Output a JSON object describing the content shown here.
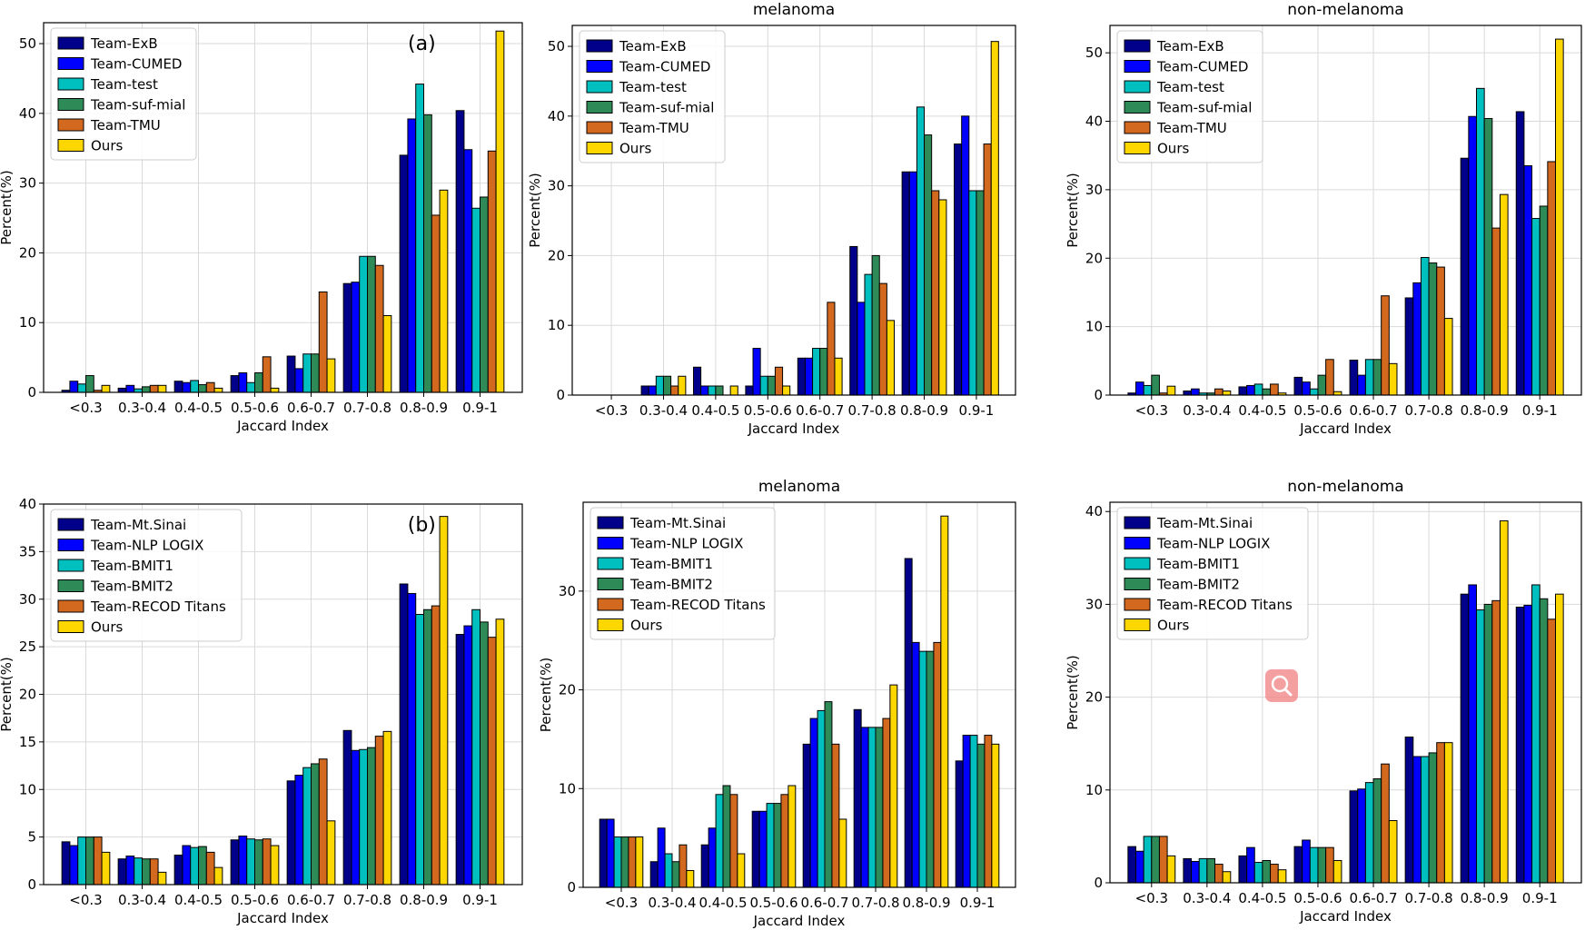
{
  "chart_data": [
    {
      "type": "bar",
      "title": "",
      "panel_label": "(a)",
      "xlabel": "Jaccard Index",
      "ylabel": "Percent(%)",
      "ylim": [
        0,
        53
      ],
      "yticks": [
        0,
        10,
        20,
        30,
        40,
        50
      ],
      "grid": true,
      "legend": "top-left",
      "categories": [
        "<0.3",
        "0.3-0.4",
        "0.4-0.5",
        "0.5-0.6",
        "0.6-0.7",
        "0.7-0.8",
        "0.8-0.9",
        "0.9-1"
      ],
      "series": [
        {
          "name": "Team-ExB",
          "color": "#00008b",
          "values": [
            0.3,
            0.6,
            1.6,
            2.4,
            5.2,
            15.6,
            34.0,
            40.4
          ]
        },
        {
          "name": "Team-CUMED",
          "color": "#0000ff",
          "values": [
            1.6,
            1.0,
            1.4,
            2.8,
            3.4,
            15.8,
            39.2,
            34.8
          ]
        },
        {
          "name": "Team-test",
          "color": "#00bfbf",
          "values": [
            1.2,
            0.5,
            1.7,
            1.4,
            5.5,
            19.5,
            44.2,
            26.4
          ]
        },
        {
          "name": "Team-suf-mial",
          "color": "#2e8b57",
          "values": [
            2.4,
            0.8,
            1.1,
            2.8,
            5.5,
            19.5,
            39.8,
            28.0
          ]
        },
        {
          "name": "Team-TMU",
          "color": "#d2691e",
          "values": [
            0.3,
            1.0,
            1.4,
            5.1,
            14.4,
            18.2,
            25.4,
            34.6
          ]
        },
        {
          "name": "Ours",
          "color": "#ffd700",
          "values": [
            1.0,
            1.0,
            0.6,
            0.6,
            4.8,
            11.0,
            29.0,
            51.8
          ]
        }
      ]
    },
    {
      "type": "bar",
      "title": "melanoma",
      "panel_label": "",
      "xlabel": "Jaccard Index",
      "ylabel": "Percent(%)",
      "ylim": [
        0,
        53
      ],
      "yticks": [
        0,
        10,
        20,
        30,
        40,
        50
      ],
      "grid": true,
      "legend": "top-left",
      "categories": [
        "<0.3",
        "0.3-0.4",
        "0.4-0.5",
        "0.5-0.6",
        "0.6-0.7",
        "0.7-0.8",
        "0.8-0.9",
        "0.9-1"
      ],
      "series": [
        {
          "name": "Team-ExB",
          "color": "#00008b",
          "values": [
            0.0,
            1.3,
            4.0,
            1.3,
            5.3,
            21.3,
            32.0,
            36.0
          ]
        },
        {
          "name": "Team-CUMED",
          "color": "#0000ff",
          "values": [
            0.0,
            1.3,
            1.3,
            6.7,
            5.3,
            13.3,
            32.0,
            40.0
          ]
        },
        {
          "name": "Team-test",
          "color": "#00bfbf",
          "values": [
            0.0,
            2.7,
            1.3,
            2.7,
            6.7,
            17.3,
            41.3,
            29.3
          ]
        },
        {
          "name": "Team-suf-mial",
          "color": "#2e8b57",
          "values": [
            0.0,
            2.7,
            1.3,
            2.7,
            6.7,
            20.0,
            37.3,
            29.3
          ]
        },
        {
          "name": "Team-TMU",
          "color": "#d2691e",
          "values": [
            0.0,
            1.3,
            0.0,
            4.0,
            13.3,
            16.0,
            29.3,
            36.0
          ]
        },
        {
          "name": "Ours",
          "color": "#ffd700",
          "values": [
            0.0,
            2.7,
            1.3,
            1.3,
            5.3,
            10.7,
            28.0,
            50.7
          ]
        }
      ]
    },
    {
      "type": "bar",
      "title": "non-melanoma",
      "panel_label": "",
      "xlabel": "Jaccard Index",
      "ylabel": "Percent(%)",
      "ylim": [
        0,
        54
      ],
      "yticks": [
        0,
        10,
        20,
        30,
        40,
        50
      ],
      "grid": true,
      "legend": "top-left",
      "categories": [
        "<0.3",
        "0.3-0.4",
        "0.4-0.5",
        "0.5-0.6",
        "0.6-0.7",
        "0.7-0.8",
        "0.8-0.9",
        "0.9-1"
      ],
      "series": [
        {
          "name": "Team-ExB",
          "color": "#00008b",
          "values": [
            0.3,
            0.6,
            1.2,
            2.6,
            5.1,
            14.2,
            34.6,
            41.4
          ]
        },
        {
          "name": "Team-CUMED",
          "color": "#0000ff",
          "values": [
            1.9,
            0.9,
            1.4,
            1.9,
            2.9,
            16.4,
            40.7,
            33.5
          ]
        },
        {
          "name": "Team-test",
          "color": "#00bfbf",
          "values": [
            1.4,
            0.3,
            1.6,
            0.9,
            5.2,
            20.1,
            44.8,
            25.8
          ]
        },
        {
          "name": "Team-suf-mial",
          "color": "#2e8b57",
          "values": [
            2.9,
            0.3,
            0.9,
            2.9,
            5.2,
            19.3,
            40.4,
            27.6
          ]
        },
        {
          "name": "Team-TMU",
          "color": "#d2691e",
          "values": [
            0.3,
            0.9,
            1.6,
            5.2,
            14.5,
            18.7,
            24.4,
            34.1
          ]
        },
        {
          "name": "Ours",
          "color": "#ffd700",
          "values": [
            1.3,
            0.6,
            0.3,
            0.5,
            4.6,
            11.2,
            29.3,
            52.0
          ]
        }
      ]
    },
    {
      "type": "bar",
      "title": "",
      "panel_label": "(b)",
      "xlabel": "Jaccard Index",
      "ylabel": "Percent(%)",
      "ylim": [
        0,
        40
      ],
      "yticks": [
        0,
        5,
        10,
        15,
        20,
        25,
        30,
        35,
        40
      ],
      "grid": true,
      "legend": "top-left",
      "categories": [
        "<0.3",
        "0.3-0.4",
        "0.4-0.5",
        "0.5-0.6",
        "0.6-0.7",
        "0.7-0.8",
        "0.8-0.9",
        "0.9-1"
      ],
      "series": [
        {
          "name": "Team-Mt.Sinai",
          "color": "#00008b",
          "values": [
            4.5,
            2.7,
            3.1,
            4.7,
            10.9,
            16.2,
            31.6,
            26.3
          ]
        },
        {
          "name": "Team-NLP LOGIX",
          "color": "#0000ff",
          "values": [
            4.1,
            3.0,
            4.1,
            5.1,
            11.5,
            14.1,
            30.6,
            27.2
          ]
        },
        {
          "name": "Team-BMIT1",
          "color": "#00bfbf",
          "values": [
            5.0,
            2.8,
            3.9,
            4.8,
            12.3,
            14.2,
            28.4,
            28.9
          ]
        },
        {
          "name": "Team-BMIT2",
          "color": "#2e8b57",
          "values": [
            5.0,
            2.7,
            4.0,
            4.7,
            12.7,
            14.4,
            28.9,
            27.6
          ]
        },
        {
          "name": "Team-RECOD Titans",
          "color": "#d2691e",
          "values": [
            5.0,
            2.7,
            3.4,
            4.8,
            13.2,
            15.6,
            29.3,
            26.0
          ]
        },
        {
          "name": "Ours",
          "color": "#ffd700",
          "values": [
            3.4,
            1.3,
            1.8,
            4.1,
            6.7,
            16.1,
            38.7,
            27.9
          ]
        }
      ]
    },
    {
      "type": "bar",
      "title": "melanoma",
      "panel_label": "",
      "xlabel": "Jaccard Index",
      "ylabel": "Percent(%)",
      "ylim": [
        0,
        39
      ],
      "yticks": [
        0,
        10,
        20,
        30
      ],
      "grid": true,
      "legend": "top-left",
      "categories": [
        "<0.3",
        "0.3-0.4",
        "0.4-0.5",
        "0.5-0.6",
        "0.6-0.7",
        "0.7-0.8",
        "0.8-0.9",
        "0.9-1"
      ],
      "series": [
        {
          "name": "Team-Mt.Sinai",
          "color": "#00008b",
          "values": [
            6.9,
            2.6,
            4.3,
            7.7,
            14.5,
            18.0,
            33.3,
            12.8
          ]
        },
        {
          "name": "Team-NLP LOGIX",
          "color": "#0000ff",
          "values": [
            6.9,
            6.0,
            6.0,
            7.7,
            17.1,
            16.2,
            24.8,
            15.4
          ]
        },
        {
          "name": "Team-BMIT1",
          "color": "#00bfbf",
          "values": [
            5.1,
            3.4,
            9.4,
            8.5,
            17.9,
            16.2,
            23.9,
            15.4
          ]
        },
        {
          "name": "Team-BMIT2",
          "color": "#2e8b57",
          "values": [
            5.1,
            2.6,
            10.3,
            8.5,
            18.8,
            16.2,
            23.9,
            14.5
          ]
        },
        {
          "name": "Team-RECOD Titans",
          "color": "#d2691e",
          "values": [
            5.1,
            4.3,
            9.4,
            9.4,
            14.5,
            17.1,
            24.8,
            15.4
          ]
        },
        {
          "name": "Ours",
          "color": "#ffd700",
          "values": [
            5.1,
            1.7,
            3.4,
            10.3,
            6.9,
            20.5,
            37.6,
            14.5
          ]
        }
      ]
    },
    {
      "type": "bar",
      "title": "non-melanoma",
      "panel_label": "",
      "xlabel": "Jaccard Index",
      "ylabel": "Percent(%)",
      "ylim": [
        0,
        41
      ],
      "yticks": [
        0,
        10,
        20,
        30,
        40
      ],
      "grid": true,
      "legend": "top-left",
      "categories": [
        "<0.3",
        "0.3-0.4",
        "0.4-0.5",
        "0.5-0.6",
        "0.6-0.7",
        "0.7-0.8",
        "0.8-0.9",
        "0.9-1"
      ],
      "series": [
        {
          "name": "Team-Mt.Sinai",
          "color": "#00008b",
          "values": [
            3.9,
            2.6,
            2.9,
            3.9,
            9.9,
            15.7,
            31.1,
            29.7
          ]
        },
        {
          "name": "Team-NLP LOGIX",
          "color": "#0000ff",
          "values": [
            3.4,
            2.3,
            3.8,
            4.6,
            10.1,
            13.6,
            32.1,
            29.9
          ]
        },
        {
          "name": "Team-BMIT1",
          "color": "#00bfbf",
          "values": [
            5.0,
            2.6,
            2.2,
            3.8,
            10.8,
            13.6,
            29.4,
            32.1
          ]
        },
        {
          "name": "Team-BMIT2",
          "color": "#2e8b57",
          "values": [
            5.0,
            2.6,
            2.4,
            3.8,
            11.2,
            14.0,
            30.0,
            30.6
          ]
        },
        {
          "name": "Team-RECOD Titans",
          "color": "#d2691e",
          "values": [
            5.0,
            2.0,
            2.0,
            3.8,
            12.8,
            15.1,
            30.4,
            28.4
          ]
        },
        {
          "name": "Ours",
          "color": "#ffd700",
          "values": [
            2.9,
            1.2,
            1.4,
            2.4,
            6.7,
            15.1,
            39.0,
            31.1
          ]
        }
      ]
    }
  ]
}
